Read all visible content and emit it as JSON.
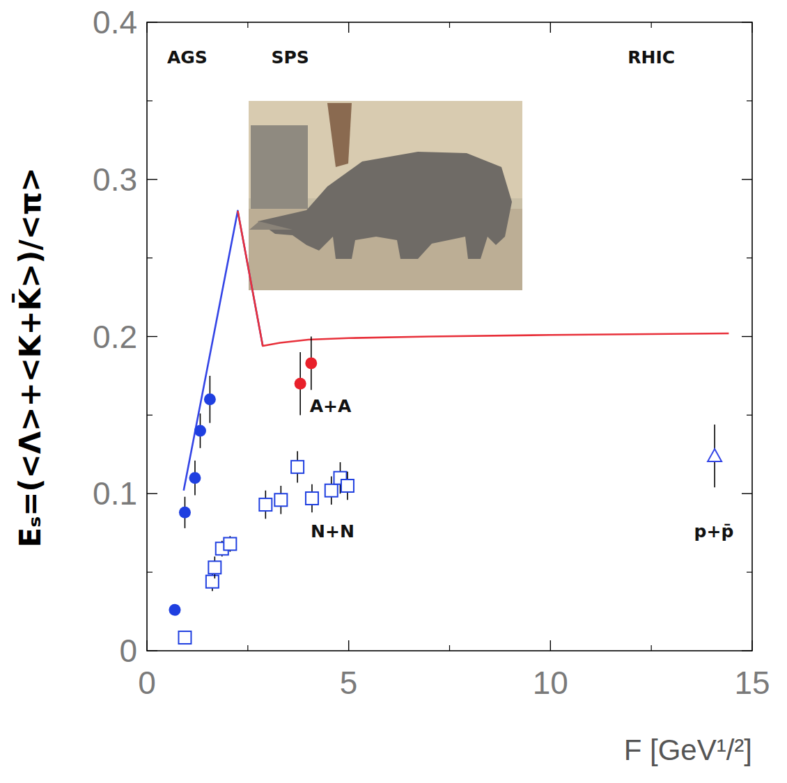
{
  "chart_data": {
    "type": "scatter",
    "xlabel": "F [GeV¹/²]",
    "ylabel": "Eₛ=(<Λ>+<K+K̄>)/<π>",
    "xlim": [
      0,
      15
    ],
    "ylim": [
      0,
      0.4
    ],
    "xticks": [
      0,
      5,
      10,
      15
    ],
    "yticks": [
      0,
      0.1,
      0.2,
      0.3,
      0.4
    ],
    "grid": false,
    "series": [
      {
        "type": "line",
        "color": "#3344e6",
        "line_style": "solid",
        "x": [
          0.91,
          2.25,
          2.87
        ],
        "values": [
          0.102,
          0.28,
          0.194
        ]
      },
      {
        "type": "line",
        "color": "#e8303a",
        "line_style": "solid",
        "x": [
          2.25,
          2.87,
          3.3,
          4,
          5,
          7,
          10,
          14.42
        ],
        "values": [
          0.28,
          0.194,
          0.196,
          0.198,
          0.199,
          0.2,
          0.201,
          0.202
        ]
      },
      {
        "type": "scatter",
        "color": "#1f3fe0",
        "marker": "circle",
        "x": [
          0.69,
          0.94,
          1.19,
          1.32,
          1.56
        ],
        "values": [
          0.026,
          0.088,
          0.11,
          0.14,
          0.16
        ],
        "errors": [
          0,
          0.01,
          0.011,
          0.011,
          0.015
        ]
      },
      {
        "type": "scatter",
        "color": "#e8202a",
        "marker": "circle",
        "x": [
          3.8,
          4.07
        ],
        "values": [
          0.17,
          0.183
        ],
        "errors": [
          0.02,
          0.017
        ]
      },
      {
        "type": "scatter",
        "color": "#1f3fe0",
        "marker": "open-square",
        "x": [
          0.94,
          1.62,
          1.68,
          1.86,
          2.06,
          2.94,
          3.32,
          3.73,
          4.09,
          4.57,
          4.79,
          4.97
        ],
        "values": [
          0.0084,
          0.044,
          0.053,
          0.065,
          0.068,
          0.093,
          0.096,
          0.117,
          0.097,
          0.102,
          0.11,
          0.105
        ],
        "errors": [
          0,
          0.006,
          0.007,
          0.005,
          0.005,
          0.009,
          0.009,
          0.01,
          0.009,
          0.009,
          0.01,
          0.009
        ]
      },
      {
        "type": "scatter",
        "color": "#3344e6",
        "marker": "open-triangle",
        "x": [
          14.07
        ],
        "values": [
          0.124
        ],
        "errors": [
          0.02
        ]
      }
    ],
    "annotations": [
      {
        "text": "AGS",
        "x": 1.0,
        "y": 0.374
      },
      {
        "text": "SPS",
        "x": 3.55,
        "y": 0.374
      },
      {
        "text": "RHIC",
        "x": 12.5,
        "y": 0.374
      },
      {
        "text": "A+A",
        "x": 4.55,
        "y": 0.152
      },
      {
        "text": "N+N",
        "x": 4.6,
        "y": 0.072
      },
      {
        "text": "p+p̄",
        "x": 14.05,
        "y": 0.072
      }
    ]
  }
}
